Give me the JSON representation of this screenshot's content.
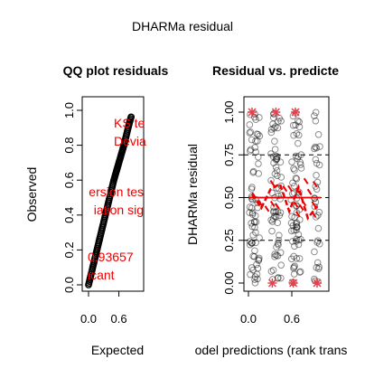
{
  "figure": {
    "title": "DHARMa residual"
  },
  "chart_data": [
    {
      "type": "scatter",
      "title": "QQ plot residuals",
      "xlabel": "Expected",
      "ylabel": "Observed",
      "xlim": [
        0,
        1
      ],
      "ylim": [
        0,
        1
      ],
      "x_ticks": [
        "0.0",
        "0.6"
      ],
      "y_ticks": [
        "0.0",
        "0.2",
        "0.4",
        "0.6",
        "0.8",
        "1.0"
      ],
      "x_tick_values": [
        0.0,
        0.6
      ],
      "y_tick_values": [
        0.0,
        0.2,
        0.4,
        0.6,
        0.8,
        1.0
      ],
      "reference_line": [
        [
          0,
          0
        ],
        [
          1,
          1
        ]
      ],
      "series": [
        {
          "values_x": [
            0.0,
            0.05,
            0.1,
            0.15,
            0.2,
            0.25,
            0.3,
            0.35,
            0.4,
            0.45,
            0.5,
            0.55,
            0.6,
            0.65,
            0.7,
            0.75,
            0.8,
            0.85
          ],
          "values_y": [
            0.0,
            0.06,
            0.12,
            0.18,
            0.24,
            0.3,
            0.36,
            0.42,
            0.48,
            0.54,
            0.6,
            0.65,
            0.7,
            0.75,
            0.8,
            0.86,
            0.92,
            0.97
          ]
        }
      ],
      "annotations": [
        {
          "text": "KS te",
          "color": "#ee0000"
        },
        {
          "text": "Devia",
          "color": "#ee0000"
        },
        {
          "text": "ersion tes",
          "color": "#ee0000"
        },
        {
          "text": "iation  sig",
          "color": "#ee0000"
        },
        {
          "text": "0.93657",
          "color": "#ee0000"
        },
        {
          "text": "icant",
          "color": "#ee0000"
        }
      ]
    },
    {
      "type": "scatter",
      "title": "Residual vs. predicte",
      "xlabel": "odel predictions (rank trans",
      "ylabel": "DHARMa residual",
      "xlim": [
        0,
        1
      ],
      "ylim": [
        0,
        1
      ],
      "x_ticks": [
        "0.0",
        "0.6"
      ],
      "y_ticks": [
        "0.00",
        "0.25",
        "0.50",
        "0.75",
        "1.00"
      ],
      "x_tick_values": [
        0.0,
        0.6
      ],
      "y_tick_values": [
        0.0,
        0.25,
        0.5,
        0.75,
        1.0
      ],
      "reference_lines_y": [
        0.25,
        0.5,
        0.75
      ],
      "point_groups_x": [
        0.05,
        0.12,
        0.35,
        0.42,
        0.63,
        0.7,
        0.95
      ],
      "outliers": [
        {
          "x": 0.05,
          "y": 1.0
        },
        {
          "x": 0.38,
          "y": 1.0
        },
        {
          "x": 0.65,
          "y": 1.0
        },
        {
          "x": 0.33,
          "y": 0.0
        },
        {
          "x": 0.62,
          "y": 0.0
        },
        {
          "x": 0.95,
          "y": 0.0
        }
      ],
      "quantile_curves": [
        {
          "color": "#ee0000",
          "y": [
            0.52,
            0.44,
            0.55,
            0.58,
            0.42,
            0.56,
            0.38,
            0.45
          ]
        },
        {
          "color": "#ee0000",
          "y": [
            0.5,
            0.5,
            0.5,
            0.5,
            0.5,
            0.5,
            0.5,
            0.5
          ]
        }
      ]
    }
  ]
}
